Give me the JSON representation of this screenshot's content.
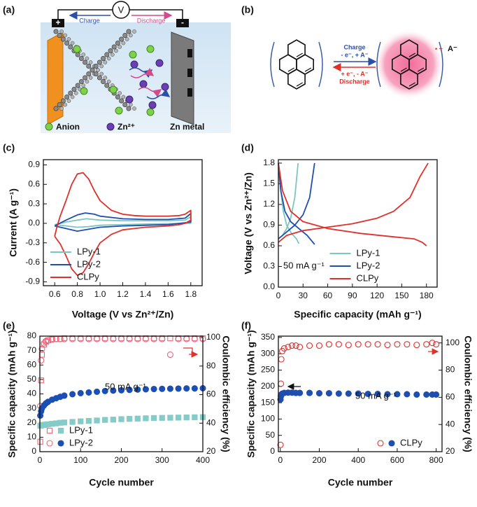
{
  "schematics": {
    "a": {
      "label": "(a)",
      "voltmeter": "V",
      "charge": "Charge",
      "discharge": "Discharge",
      "positive": "+",
      "negative": "-",
      "legend": [
        "Anion",
        "Zn²⁺",
        "Zn metal"
      ]
    },
    "b": {
      "label": "(b)",
      "charge": "Charge",
      "charge_step": "- e⁻,  + A⁻",
      "discharge_step": "+ e⁻,  - A⁻",
      "discharge": "Discharge",
      "anion": "A⁻",
      "radical_cation": "• +"
    }
  },
  "chart_data": [
    {
      "type": "line",
      "label": "(c)",
      "xlabel": "Voltage (V vs Zn²⁺/Zn)",
      "ylabel": "Current (A g⁻¹)",
      "xlim": [
        0.5,
        1.9
      ],
      "xticks": [
        0.6,
        0.8,
        {
          "value": 1,
          "label": "1.0"
        },
        1.2,
        1.4,
        1.6,
        1.8
      ],
      "ylim": [
        -0.96,
        0.98
      ],
      "yticks": [
        -0.9,
        -0.6,
        -0.3,
        {
          "value": 0,
          "label": "0.0"
        },
        0.3,
        0.6,
        0.9
      ],
      "legend": "lower left",
      "series": [
        {
          "name": "LPy-1",
          "color": "#7cc6c2",
          "x": [
            0.6,
            0.7,
            0.8,
            0.88,
            1.0,
            1.2,
            1.6,
            1.75,
            1.8,
            1.8,
            1.4,
            1.0,
            0.9,
            0.8,
            0.7,
            0.6
          ],
          "values": [
            -0.02,
            0.02,
            0.05,
            0.07,
            0.05,
            0.04,
            0.04,
            0.05,
            0.1,
            0.0,
            -0.01,
            -0.03,
            -0.05,
            -0.06,
            -0.04,
            -0.02
          ]
        },
        {
          "name": "LPy-2",
          "color": "#1f4fae",
          "x": [
            0.6,
            0.7,
            0.8,
            0.87,
            0.95,
            1.0,
            1.2,
            1.4,
            1.6,
            1.75,
            1.8,
            1.8,
            1.6,
            1.4,
            1.2,
            1.0,
            0.9,
            0.8,
            0.7,
            0.6
          ],
          "values": [
            -0.04,
            0.05,
            0.13,
            0.16,
            0.14,
            0.11,
            0.07,
            0.06,
            0.06,
            0.08,
            0.15,
            0.02,
            -0.02,
            -0.03,
            -0.04,
            -0.06,
            -0.09,
            -0.12,
            -0.08,
            -0.04
          ]
        },
        {
          "name": "CLPy",
          "color": "#e0302c",
          "x": [
            0.6,
            0.62,
            0.65,
            0.7,
            0.75,
            0.8,
            0.85,
            0.9,
            0.95,
            1.0,
            1.1,
            1.2,
            1.3,
            1.4,
            1.5,
            1.6,
            1.7,
            1.75,
            1.8,
            1.8,
            1.75,
            1.7,
            1.6,
            1.5,
            1.4,
            1.3,
            1.2,
            1.1,
            1.0,
            0.95,
            0.9,
            0.85,
            0.8,
            0.75,
            0.7,
            0.65,
            0.62,
            0.6
          ],
          "values": [
            -0.2,
            -0.05,
            0.12,
            0.35,
            0.6,
            0.76,
            0.78,
            0.68,
            0.5,
            0.35,
            0.2,
            0.14,
            0.12,
            0.11,
            0.11,
            0.11,
            0.12,
            0.14,
            0.2,
            0.05,
            0.0,
            -0.02,
            -0.04,
            -0.05,
            -0.06,
            -0.08,
            -0.1,
            -0.17,
            -0.3,
            -0.45,
            -0.62,
            -0.76,
            -0.8,
            -0.7,
            -0.5,
            -0.32,
            -0.25,
            -0.2
          ]
        }
      ]
    },
    {
      "type": "line",
      "label": "(d)",
      "xlabel": "Specific capacity (mAh g⁻¹)",
      "ylabel": "Voltage (V vs Zn²⁺/Zn)",
      "xlim": [
        0,
        193
      ],
      "xticks": [
        0,
        30,
        60,
        90,
        120,
        150,
        180
      ],
      "ylim": [
        0,
        1.85
      ],
      "yticks": [
        {
          "value": 0,
          "label": "0.0"
        },
        0.3,
        0.6,
        0.9,
        1.2,
        1.5,
        1.8
      ],
      "legend": "lower center",
      "annotation": "50 mA g⁻¹",
      "series": [
        {
          "name": "LPy-1",
          "color": "#7cc6c2",
          "x": [
            0,
            5,
            10,
            15,
            20,
            24,
            null,
            0,
            3,
            6,
            10,
            16,
            22,
            25
          ],
          "values": [
            0.7,
            0.75,
            0.85,
            1.0,
            1.3,
            1.8,
            null,
            1.75,
            1.4,
            1.1,
            0.9,
            0.78,
            0.7,
            0.63
          ]
        },
        {
          "name": "LPy-2",
          "color": "#1f4fae",
          "x": [
            0,
            10,
            20,
            30,
            38,
            44,
            null,
            0,
            3,
            8,
            15,
            25,
            35,
            44
          ],
          "values": [
            0.7,
            0.8,
            0.9,
            1.05,
            1.3,
            1.8,
            null,
            1.8,
            1.4,
            1.1,
            0.95,
            0.85,
            0.75,
            0.62
          ]
        },
        {
          "name": "CLPy",
          "color": "#e0302c",
          "x": [
            0,
            10,
            30,
            60,
            90,
            120,
            140,
            160,
            172,
            182,
            null,
            0,
            5,
            15,
            30,
            60,
            100,
            140,
            165,
            175,
            180
          ],
          "values": [
            0.65,
            0.75,
            0.82,
            0.87,
            0.92,
            1.0,
            1.1,
            1.3,
            1.6,
            1.8,
            null,
            1.8,
            1.4,
            1.1,
            0.95,
            0.85,
            0.78,
            0.73,
            0.7,
            0.65,
            0.6
          ]
        }
      ]
    },
    {
      "type": "scatter",
      "label": "(e)",
      "xlabel": "Cycle number",
      "ylabel": "Specific capacity (mAh g⁻¹)",
      "y2label": "Coulombic efficiency (%)",
      "xlim": [
        0,
        400
      ],
      "xticks": [
        0,
        100,
        200,
        300,
        400
      ],
      "ylim": [
        0,
        80
      ],
      "yticks": [
        0,
        10,
        20,
        30,
        40,
        50,
        60,
        70,
        80
      ],
      "y2lim": [
        20,
        101
      ],
      "y2ticks": [
        20,
        40,
        60,
        80,
        100
      ],
      "legend": "lower left",
      "annotation": "50 mA g⁻¹",
      "x": [
        1,
        3,
        5,
        10,
        15,
        20,
        30,
        40,
        50,
        60,
        80,
        100,
        120,
        140,
        160,
        180,
        200,
        220,
        240,
        260,
        280,
        300,
        320,
        340,
        360,
        380,
        400
      ],
      "series": [
        {
          "name": "LPy-1",
          "color": "#85cbc7",
          "marker": "square",
          "values": [
            18,
            18,
            18.5,
            18.5,
            18.8,
            19,
            19.3,
            19.6,
            20,
            20.2,
            20.6,
            21,
            21.3,
            21.6,
            22,
            22.2,
            22.5,
            22.7,
            22.9,
            23.1,
            23.3,
            23.4,
            23.5,
            23.6,
            23.7,
            23.8,
            23.9
          ],
          "efficiency": {
            "color": "#e8697d",
            "values": [
              27,
              70,
              88,
              95,
              97,
              98,
              99,
              99,
              99,
              99.5,
              99.5,
              99.5,
              99.5,
              99.5,
              99.5,
              99.5,
              99.5,
              99.5,
              99.5,
              99.5,
              99.5,
              99.5,
              99.5,
              99.5,
              99.5,
              99.5,
              99.5
            ]
          }
        },
        {
          "name": "LPy-2",
          "color": "#1b4fb4",
          "marker": "circle",
          "values": [
            25,
            28,
            30,
            32,
            33.5,
            34.5,
            36,
            37,
            38,
            38.8,
            39.8,
            40.5,
            41,
            41.5,
            42,
            42.3,
            42.5,
            42.8,
            43,
            43.2,
            43.4,
            43.5,
            43.6,
            43.7,
            43.8,
            43.8,
            43.9
          ],
          "efficiency": {
            "color": "#e8697d",
            "values": [
              52,
              84,
              92,
              96,
              97.5,
              98,
              98.5,
              99,
              99,
              99,
              99,
              99,
              99,
              99,
              99,
              99,
              99,
              99,
              99,
              99,
              99,
              99,
              88,
              99,
              99,
              99,
              99
            ]
          }
        }
      ]
    },
    {
      "type": "scatter",
      "label": "(f)",
      "xlabel": "Cycle number",
      "ylabel": "Specific capacity (mAh g⁻¹)",
      "y2label": "Coulombic efficiency (%)",
      "xlim": [
        -10,
        830
      ],
      "xticks": [
        0,
        200,
        400,
        600,
        800
      ],
      "ylim": [
        0,
        354
      ],
      "yticks": [
        0,
        50,
        100,
        150,
        200,
        250,
        300,
        350
      ],
      "y2lim": [
        20,
        105
      ],
      "y2ticks": [
        20,
        40,
        60,
        80,
        100
      ],
      "legend": "lower right",
      "annotation": "50 mA g⁻¹",
      "x": [
        1,
        3,
        5,
        10,
        20,
        40,
        60,
        80,
        100,
        150,
        200,
        250,
        300,
        350,
        400,
        450,
        500,
        550,
        600,
        650,
        700,
        750,
        780,
        800
      ],
      "series": [
        {
          "name": "CLPy",
          "color": "#1f4fae",
          "marker": "circle",
          "values": [
            160,
            170,
            175,
            178,
            180,
            181,
            181,
            180,
            180,
            180,
            179,
            179,
            178,
            178,
            178,
            177,
            177,
            176,
            176,
            176,
            175,
            175,
            175,
            175
          ],
          "efficiency": {
            "color": "#e0302c",
            "values": [
              25,
              70,
              88,
              94,
              96,
              97,
              98,
              98,
              97,
              98,
              98,
              99,
              99,
              98.5,
              99,
              99,
              99,
              98.5,
              99,
              99,
              98.5,
              99,
              100,
              99
            ]
          }
        }
      ]
    }
  ]
}
